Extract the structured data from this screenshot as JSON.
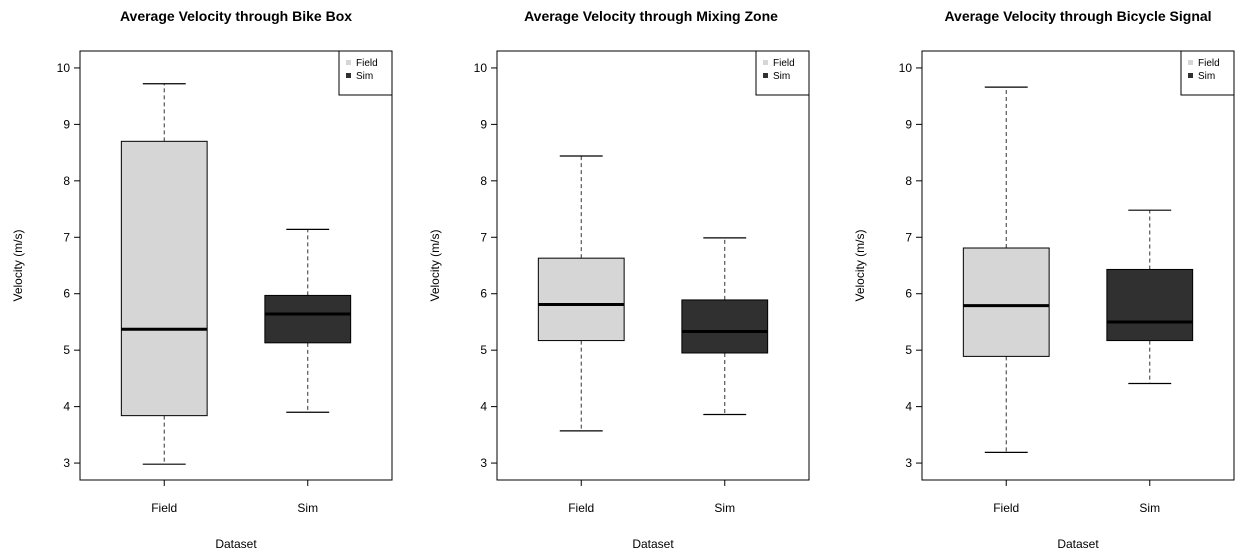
{
  "colors": {
    "field": "#d6d6d6",
    "sim": "#303030",
    "stroke": "#000000",
    "whisker": "#333333"
  },
  "chart_data": [
    {
      "type": "box",
      "title": "Average Velocity through Bike Box",
      "xlabel": "Dataset",
      "ylabel": "Velocity (m/s)",
      "ylim": [
        2.7,
        10.3
      ],
      "yticks": [
        3,
        4,
        5,
        6,
        7,
        8,
        9,
        10
      ],
      "categories": [
        "Field",
        "Sim"
      ],
      "legend": {
        "position": "top-right",
        "entries": [
          "Field",
          "Sim"
        ]
      },
      "boxes": [
        {
          "name": "Field",
          "min": 2.98,
          "q1": 3.84,
          "median": 5.37,
          "q3": 8.7,
          "max": 9.72
        },
        {
          "name": "Sim",
          "min": 3.9,
          "q1": 5.13,
          "median": 5.64,
          "q3": 5.97,
          "max": 7.14
        }
      ]
    },
    {
      "type": "box",
      "title": "Average Velocity through Mixing Zone",
      "xlabel": "Dataset",
      "ylabel": "Velocity (m/s)",
      "ylim": [
        2.7,
        10.3
      ],
      "yticks": [
        3,
        4,
        5,
        6,
        7,
        8,
        9,
        10
      ],
      "categories": [
        "Field",
        "Sim"
      ],
      "legend": {
        "position": "top-right",
        "entries": [
          "Field",
          "Sim"
        ]
      },
      "boxes": [
        {
          "name": "Field",
          "min": 3.57,
          "q1": 5.17,
          "median": 5.81,
          "q3": 6.63,
          "max": 8.44
        },
        {
          "name": "Sim",
          "min": 3.86,
          "q1": 4.95,
          "median": 5.33,
          "q3": 5.89,
          "max": 6.99
        }
      ]
    },
    {
      "type": "box",
      "title": "Average Velocity through Bicycle Signal",
      "xlabel": "Dataset",
      "ylabel": "Velocity (m/s)",
      "ylim": [
        2.7,
        10.3
      ],
      "yticks": [
        3,
        4,
        5,
        6,
        7,
        8,
        9,
        10
      ],
      "categories": [
        "Field",
        "Sim"
      ],
      "legend": {
        "position": "top-right",
        "entries": [
          "Field",
          "Sim"
        ]
      },
      "boxes": [
        {
          "name": "Field",
          "min": 3.19,
          "q1": 4.89,
          "median": 5.79,
          "q3": 6.81,
          "max": 9.66
        },
        {
          "name": "Sim",
          "min": 4.41,
          "q1": 5.17,
          "median": 5.5,
          "q3": 6.43,
          "max": 7.48
        }
      ]
    }
  ]
}
